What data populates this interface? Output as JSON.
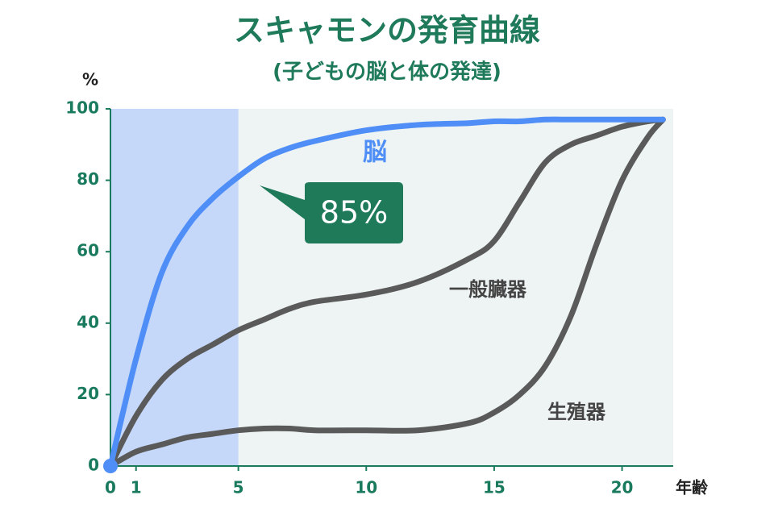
{
  "chart_data": {
    "type": "line",
    "title": "スキャモンの発育曲線",
    "subtitle": "(子どもの脳と体の発達)",
    "y_label": "%",
    "x_label": "年齢",
    "x": [
      0,
      1,
      2,
      3,
      4,
      5,
      6,
      7,
      8,
      10,
      12,
      14,
      15,
      16,
      17,
      18,
      19,
      20,
      21,
      21.6
    ],
    "series": [
      {
        "name": "脳",
        "color": "#4f8ef7",
        "values": [
          0,
          30,
          54,
          67,
          75,
          81,
          86,
          89,
          91,
          94,
          95.5,
          96,
          96.5,
          96.5,
          97,
          97,
          97,
          97,
          97,
          97
        ]
      },
      {
        "name": "一般臓器",
        "color": "#5a5a5a",
        "values": [
          0,
          14,
          24,
          30,
          34,
          38,
          41,
          44,
          46,
          48,
          51.5,
          58,
          63,
          74,
          85,
          90,
          92.5,
          95,
          96.5,
          97
        ]
      },
      {
        "name": "生殖器",
        "color": "#5a5a5a",
        "values": [
          0,
          4,
          6,
          8,
          9,
          10,
          10.5,
          10.5,
          10,
          10,
          10,
          12,
          15,
          20,
          28,
          42,
          62,
          80,
          92,
          97
        ]
      }
    ],
    "annotation": "85%",
    "highlight_xrange": [
      0,
      5
    ],
    "xlim": [
      0,
      22
    ],
    "ylim": [
      0,
      100
    ],
    "xticks": [
      0,
      1,
      5,
      10,
      15,
      20
    ],
    "yticks": [
      0,
      20,
      40,
      60,
      80,
      100
    ]
  }
}
